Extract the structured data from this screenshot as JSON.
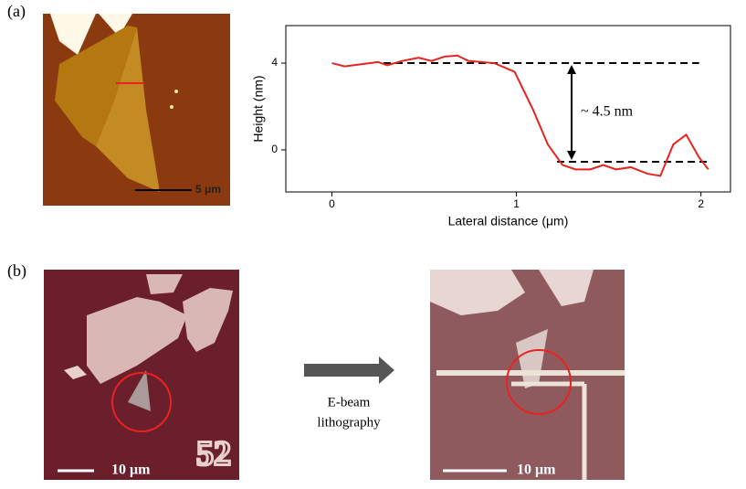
{
  "panel_a": {
    "label": "(a)",
    "scale_bar": "5 μm"
  },
  "panel_b": {
    "label": "(b)",
    "left_scale_bar": "10 μm",
    "right_scale_bar": "10 μm",
    "arrow_label": [
      "E-beam",
      "lithography"
    ],
    "chip_marker": "52"
  },
  "chart_data": {
    "type": "line",
    "xlabel": "Lateral distance (μm)",
    "ylabel": "Height (nm)",
    "x": [
      0,
      0.07,
      0.16,
      0.25,
      0.3,
      0.38,
      0.47,
      0.54,
      0.61,
      0.68,
      0.74,
      0.88,
      0.99,
      1.09,
      1.17,
      1.25,
      1.32,
      1.4,
      1.47,
      1.54,
      1.62,
      1.71,
      1.78,
      1.85,
      1.92,
      1.99,
      2.04
    ],
    "series": [
      {
        "color": "#e8231f",
        "values": [
          4.0,
          3.85,
          3.95,
          4.05,
          3.9,
          4.1,
          4.25,
          4.1,
          4.3,
          4.35,
          4.1,
          4.0,
          3.6,
          1.85,
          0.25,
          -0.7,
          -0.9,
          -0.9,
          -0.7,
          -0.9,
          -0.8,
          -1.1,
          -1.2,
          0.25,
          0.7,
          -0.35,
          -0.9
        ]
      }
    ],
    "xlim": [
      -0.25,
      2.16
    ],
    "ylim": [
      -1.94,
      5.73
    ],
    "xticks": [
      0,
      1,
      2
    ],
    "yticks": [
      0,
      4
    ],
    "reference_lines": [
      {
        "y": 4,
        "x": [
          0.28,
          1.99
        ]
      },
      {
        "y": -0.55,
        "x": [
          1.22,
          2.05
        ]
      }
    ],
    "annotation": "~ 4.5 nm"
  }
}
